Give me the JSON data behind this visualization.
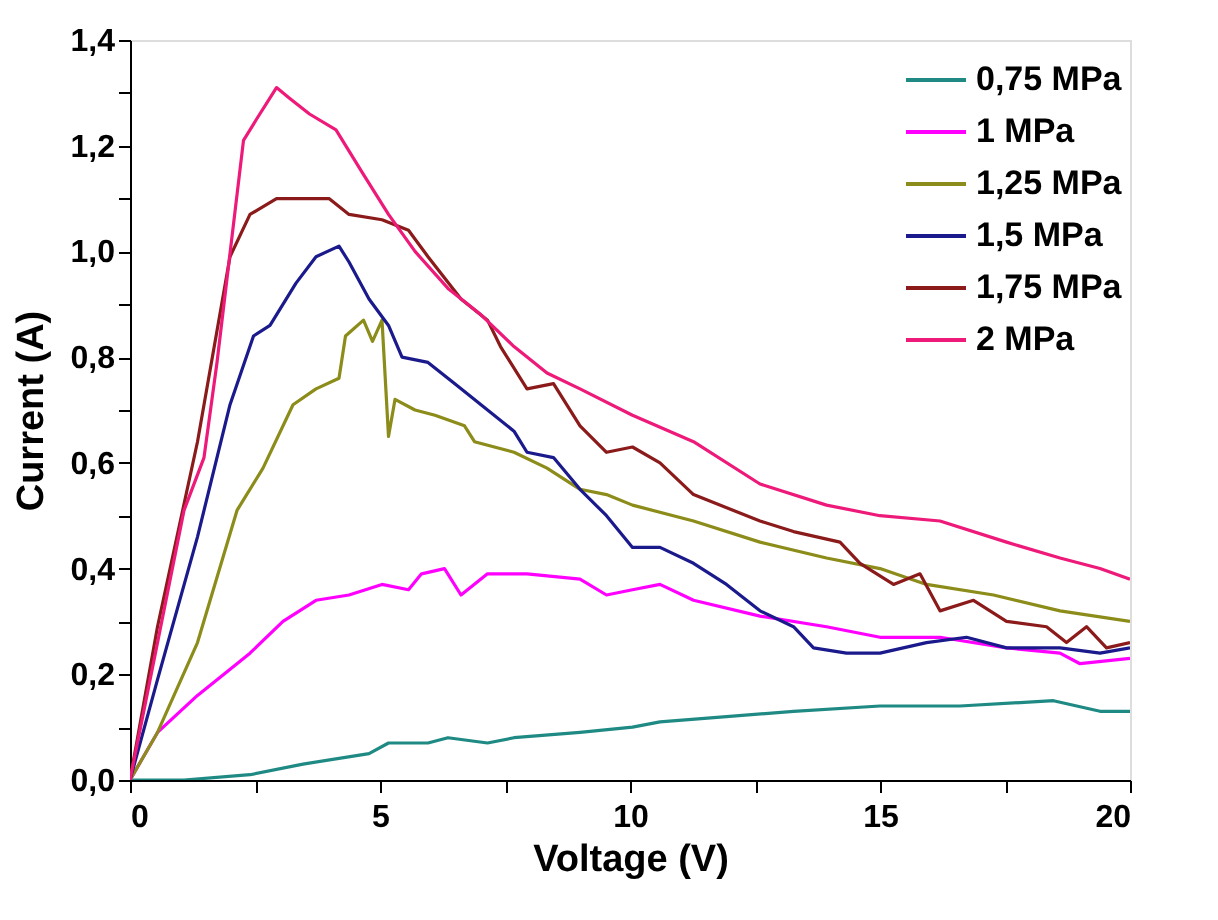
{
  "chart_data": {
    "type": "line",
    "xlabel": "Voltage (V)",
    "ylabel": "Current (A)",
    "xlim": [
      0,
      20
    ],
    "ylim": [
      0,
      1.4
    ],
    "xticks": [
      0,
      {
        "value": 2.5,
        "label": null
      },
      5,
      {
        "value": 7.5,
        "label": null
      },
      10,
      {
        "value": 12.5,
        "label": null
      },
      15,
      {
        "value": 17.5,
        "label": null
      },
      20
    ],
    "yticks": [
      {
        "value": 0,
        "label": "0,0"
      },
      {
        "value": 0.1,
        "label": null
      },
      {
        "value": 0.2,
        "label": "0,2"
      },
      {
        "value": 0.3,
        "label": null
      },
      {
        "value": 0.4,
        "label": "0,4"
      },
      {
        "value": 0.5,
        "label": null
      },
      {
        "value": 0.6,
        "label": "0,6"
      },
      {
        "value": 0.7,
        "label": null
      },
      {
        "value": 0.8,
        "label": "0,8"
      },
      {
        "value": 0.9,
        "label": null
      },
      {
        "value": 1.0,
        "label": "1,0"
      },
      {
        "value": 1.1,
        "label": null
      },
      {
        "value": 1.2,
        "label": "1,2"
      },
      {
        "value": 1.3,
        "label": null
      },
      {
        "value": 1.4,
        "label": "1,4"
      }
    ],
    "grid": false,
    "legend": "top right",
    "marker": "none",
    "line_style": "solid",
    "series": [
      {
        "name": "0,75 MPa",
        "color": "#1f8a84",
        "x": [
          0,
          1.08,
          2.4,
          3.46,
          4.78,
          5.17,
          5.96,
          6.36,
          7.15,
          7.68,
          9.0,
          10.05,
          10.6,
          11.93,
          13.27,
          15,
          16.6,
          18.47,
          19.4,
          20
        ],
        "values": [
          0,
          0.0,
          0.01,
          0.03,
          0.05,
          0.07,
          0.07,
          0.08,
          0.07,
          0.08,
          0.09,
          0.1,
          0.11,
          0.12,
          0.13,
          0.14,
          0.14,
          0.15,
          0.13,
          0.13
        ]
      },
      {
        "name": "1 MPa",
        "color": "#ff00ff",
        "x": [
          0,
          0.55,
          1.35,
          2.4,
          3.06,
          3.72,
          4.38,
          5.04,
          5.57,
          5.83,
          6.29,
          6.62,
          7.15,
          7.94,
          9.0,
          9.53,
          10.05,
          10.6,
          11.27,
          12.6,
          13.93,
          15,
          16.2,
          17.53,
          18.6,
          19.0,
          20
        ],
        "values": [
          0,
          0.09,
          0.16,
          0.24,
          0.3,
          0.34,
          0.35,
          0.37,
          0.36,
          0.39,
          0.4,
          0.35,
          0.39,
          0.39,
          0.38,
          0.35,
          0.36,
          0.37,
          0.34,
          0.31,
          0.29,
          0.27,
          0.27,
          0.25,
          0.24,
          0.22,
          0.23
        ]
      },
      {
        "name": "1,25 MPa",
        "color": "#8c8c1a",
        "x": [
          0,
          0.55,
          1.35,
          2.14,
          2.66,
          3.26,
          3.72,
          4.18,
          4.31,
          4.67,
          4.85,
          5.04,
          5.17,
          5.3,
          5.7,
          6.1,
          6.69,
          6.89,
          7.68,
          8.34,
          9.0,
          9.53,
          10.05,
          11.27,
          12.6,
          13.93,
          15,
          15.93,
          17.27,
          18.6,
          20
        ],
        "values": [
          0,
          0.09,
          0.26,
          0.51,
          0.59,
          0.71,
          0.74,
          0.76,
          0.84,
          0.87,
          0.83,
          0.87,
          0.65,
          0.72,
          0.7,
          0.69,
          0.67,
          0.64,
          0.62,
          0.59,
          0.55,
          0.54,
          0.52,
          0.49,
          0.45,
          0.42,
          0.4,
          0.37,
          0.35,
          0.32,
          0.3
        ]
      },
      {
        "name": "1,5 MPa",
        "color": "#1a1a8c",
        "x": [
          0,
          0.55,
          1.35,
          2.0,
          2.47,
          2.8,
          3.32,
          3.72,
          4.18,
          4.38,
          4.78,
          5.17,
          5.44,
          5.96,
          6.49,
          7.02,
          7.68,
          7.94,
          8.47,
          9.0,
          9.53,
          10.05,
          10.6,
          11.27,
          11.93,
          12.6,
          13.27,
          13.67,
          14.33,
          15,
          15.93,
          16.73,
          17.53,
          18.6,
          19.4,
          20
        ],
        "values": [
          0,
          0.19,
          0.46,
          0.71,
          0.84,
          0.86,
          0.94,
          0.99,
          1.01,
          0.98,
          0.91,
          0.86,
          0.8,
          0.79,
          0.75,
          0.71,
          0.66,
          0.62,
          0.61,
          0.55,
          0.5,
          0.44,
          0.44,
          0.41,
          0.37,
          0.32,
          0.29,
          0.25,
          0.24,
          0.24,
          0.26,
          0.27,
          0.25,
          0.25,
          0.24,
          0.25
        ]
      },
      {
        "name": "1,75 MPa",
        "color": "#8b1a1a",
        "x": [
          0,
          0.55,
          1.35,
          2.0,
          2.4,
          2.93,
          3.72,
          3.98,
          4.38,
          5.04,
          5.57,
          5.96,
          6.62,
          7.15,
          7.41,
          7.94,
          8.47,
          9.0,
          9.53,
          10.05,
          10.6,
          11.27,
          12.6,
          13.27,
          14.2,
          14.6,
          15.27,
          15.8,
          16.2,
          16.87,
          17.53,
          18.33,
          18.73,
          19.13,
          19.53,
          20
        ],
        "values": [
          0,
          0.29,
          0.64,
          0.99,
          1.07,
          1.1,
          1.1,
          1.1,
          1.07,
          1.06,
          1.04,
          0.99,
          0.91,
          0.87,
          0.82,
          0.74,
          0.75,
          0.67,
          0.62,
          0.63,
          0.6,
          0.54,
          0.49,
          0.47,
          0.45,
          0.41,
          0.37,
          0.39,
          0.32,
          0.34,
          0.3,
          0.29,
          0.26,
          0.29,
          0.25,
          0.26
        ]
      },
      {
        "name": "2 MPa",
        "color": "#ee1a7a",
        "x": [
          0,
          1.08,
          1.48,
          1.74,
          2.27,
          2.53,
          2.93,
          3.19,
          3.59,
          4.12,
          4.64,
          5.17,
          5.7,
          6.36,
          7.02,
          7.68,
          8.34,
          9.0,
          10.05,
          11.27,
          12.6,
          13.93,
          15,
          16.2,
          17.53,
          18.6,
          19.4,
          20
        ],
        "values": [
          0,
          0.51,
          0.61,
          0.79,
          1.21,
          1.25,
          1.31,
          1.29,
          1.26,
          1.23,
          1.15,
          1.07,
          1.0,
          0.93,
          0.88,
          0.82,
          0.77,
          0.74,
          0.69,
          0.64,
          0.56,
          0.52,
          0.5,
          0.49,
          0.45,
          0.42,
          0.4,
          0.38
        ]
      }
    ]
  }
}
